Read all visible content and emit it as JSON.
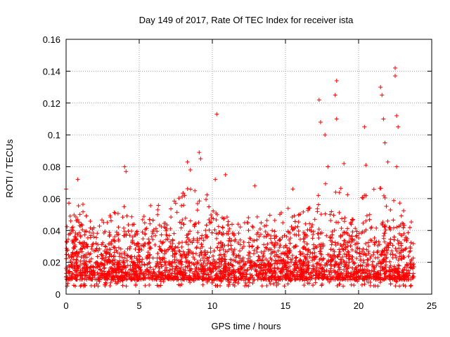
{
  "chart_data": {
    "type": "scatter",
    "title": "Day 149 of 2017, Rate Of TEC Index for receiver ista",
    "xlabel": "GPS time / hours",
    "ylabel": "ROTI / TECUs",
    "xlim": [
      0,
      25
    ],
    "ylim": [
      0,
      0.16
    ],
    "xticks": [
      0,
      5,
      10,
      15,
      20,
      25
    ],
    "xtick_labels": [
      "0",
      "5",
      "10",
      "15",
      "20",
      "25"
    ],
    "yticks": [
      0,
      0.02,
      0.04,
      0.06,
      0.08,
      0.1,
      0.12,
      0.14,
      0.16
    ],
    "ytick_labels": [
      "0",
      "0.02",
      "0.04",
      "0.06",
      "0.08",
      "0.1",
      "0.12",
      "0.14",
      "0.16"
    ],
    "grid": true,
    "marker": "+",
    "marker_color": "#ff0000",
    "data_range": {
      "x": [
        0,
        23.8
      ],
      "y_bulk": [
        0.005,
        0.035
      ]
    },
    "series": [
      {
        "name": "ROTI",
        "notable_points": [
          {
            "x": 0.0,
            "y": 0.066
          },
          {
            "x": 0.8,
            "y": 0.072
          },
          {
            "x": 4.0,
            "y": 0.08
          },
          {
            "x": 4.1,
            "y": 0.077
          },
          {
            "x": 8.3,
            "y": 0.083
          },
          {
            "x": 8.5,
            "y": 0.078
          },
          {
            "x": 9.1,
            "y": 0.089
          },
          {
            "x": 9.2,
            "y": 0.085
          },
          {
            "x": 10.3,
            "y": 0.113
          },
          {
            "x": 10.2,
            "y": 0.072
          },
          {
            "x": 10.9,
            "y": 0.075
          },
          {
            "x": 12.9,
            "y": 0.068
          },
          {
            "x": 15.5,
            "y": 0.066
          },
          {
            "x": 17.3,
            "y": 0.122
          },
          {
            "x": 17.4,
            "y": 0.108
          },
          {
            "x": 17.7,
            "y": 0.1
          },
          {
            "x": 17.9,
            "y": 0.08
          },
          {
            "x": 18.5,
            "y": 0.134
          },
          {
            "x": 18.4,
            "y": 0.125
          },
          {
            "x": 18.5,
            "y": 0.11
          },
          {
            "x": 19.0,
            "y": 0.082
          },
          {
            "x": 20.4,
            "y": 0.105
          },
          {
            "x": 20.5,
            "y": 0.081
          },
          {
            "x": 21.5,
            "y": 0.13
          },
          {
            "x": 21.6,
            "y": 0.125
          },
          {
            "x": 21.7,
            "y": 0.11
          },
          {
            "x": 21.8,
            "y": 0.095
          },
          {
            "x": 22.0,
            "y": 0.083
          },
          {
            "x": 22.5,
            "y": 0.142
          },
          {
            "x": 22.5,
            "y": 0.137
          },
          {
            "x": 22.6,
            "y": 0.112
          },
          {
            "x": 22.7,
            "y": 0.105
          },
          {
            "x": 22.6,
            "y": 0.08
          }
        ],
        "activity_envelope": [
          {
            "x": 0,
            "ymax": 0.066
          },
          {
            "x": 1,
            "ymax": 0.06
          },
          {
            "x": 2,
            "ymax": 0.04
          },
          {
            "x": 3,
            "ymax": 0.05
          },
          {
            "x": 4,
            "ymax": 0.06
          },
          {
            "x": 5,
            "ymax": 0.052
          },
          {
            "x": 6,
            "ymax": 0.06
          },
          {
            "x": 7,
            "ymax": 0.055
          },
          {
            "x": 8,
            "ymax": 0.065
          },
          {
            "x": 9,
            "ymax": 0.07
          },
          {
            "x": 10,
            "ymax": 0.058
          },
          {
            "x": 11,
            "ymax": 0.05
          },
          {
            "x": 12,
            "ymax": 0.048
          },
          {
            "x": 13,
            "ymax": 0.06
          },
          {
            "x": 14,
            "ymax": 0.048
          },
          {
            "x": 15,
            "ymax": 0.055
          },
          {
            "x": 16,
            "ymax": 0.062
          },
          {
            "x": 17,
            "ymax": 0.06
          },
          {
            "x": 18,
            "ymax": 0.075
          },
          {
            "x": 19,
            "ymax": 0.065
          },
          {
            "x": 20,
            "ymax": 0.06
          },
          {
            "x": 21,
            "ymax": 0.068
          },
          {
            "x": 22,
            "ymax": 0.07
          },
          {
            "x": 23,
            "ymax": 0.055
          },
          {
            "x": 23.8,
            "ymax": 0.04
          }
        ]
      }
    ]
  }
}
